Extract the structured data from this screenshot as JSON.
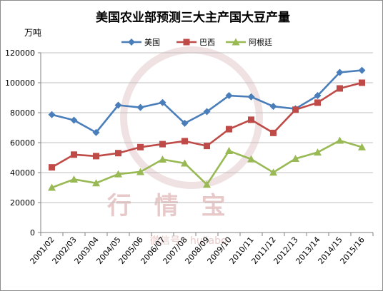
{
  "watermark": {
    "main_text": "行 情 宝",
    "sub_text": "微信号：hujiabo"
  },
  "chart_data": {
    "type": "line",
    "title": "美国农业部预测三大主产国大豆产量",
    "unit_label": "万吨",
    "xlabel": "",
    "ylabel": "",
    "ylim": [
      0,
      120000
    ],
    "yticks": [
      0,
      20000,
      40000,
      60000,
      80000,
      100000,
      120000
    ],
    "grid": true,
    "legend_position": "top",
    "categories": [
      "2001/02",
      "2002/03",
      "2003/04",
      "2004/05",
      "2005/06",
      "2006/07",
      "2007/08",
      "2008/09",
      "2009/10",
      "2010/11",
      "2011/12",
      "2012/13",
      "2013/14",
      "2014/15",
      "2015/16"
    ],
    "series": [
      {
        "name": "美国",
        "color": "#4a7ebb",
        "marker": "diamond",
        "values": [
          78700,
          75000,
          66800,
          85000,
          83500,
          86800,
          72900,
          80700,
          91400,
          90600,
          84200,
          82600,
          91400,
          106900,
          108300
        ]
      },
      {
        "name": "巴西",
        "color": "#be4b48",
        "marker": "square",
        "values": [
          43500,
          52000,
          51000,
          53000,
          57000,
          59000,
          61000,
          57800,
          69000,
          75300,
          66500,
          82000,
          86700,
          96200,
          100000
        ]
      },
      {
        "name": "阿根廷",
        "color": "#98b954",
        "marker": "triangle",
        "values": [
          30000,
          35500,
          33000,
          39000,
          40500,
          48800,
          46200,
          32000,
          54500,
          49000,
          40100,
          49300,
          53500,
          61400,
          57000
        ]
      }
    ]
  }
}
